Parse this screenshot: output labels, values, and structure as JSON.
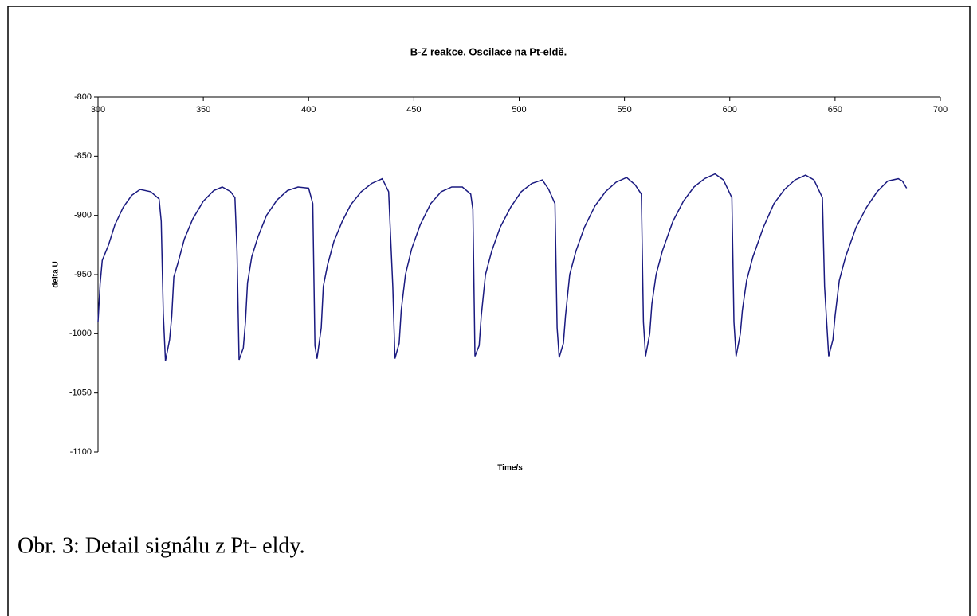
{
  "chart_data": {
    "type": "line",
    "title": "B-Z reakce. Oscilace na Pt-eldě.",
    "x_label": "Time/s",
    "y_label": "delta U",
    "color": "#1a1a80",
    "x": [
      300,
      301,
      302,
      305,
      308,
      312,
      316,
      320,
      325,
      329,
      330,
      331,
      332,
      334,
      335,
      336,
      338,
      341,
      345,
      350,
      355,
      359,
      363,
      365,
      366,
      367,
      369,
      370,
      371,
      373,
      376,
      380,
      385,
      390,
      395,
      400,
      402,
      403,
      404,
      406,
      407,
      409,
      412,
      416,
      420,
      425,
      430,
      435,
      438,
      440,
      441,
      443,
      444,
      446,
      449,
      453,
      458,
      463,
      468,
      473,
      477,
      478,
      479,
      481,
      482,
      484,
      487,
      491,
      496,
      501,
      506,
      511,
      514,
      517,
      518,
      519,
      521,
      522,
      524,
      527,
      531,
      536,
      541,
      546,
      551,
      555,
      558,
      559,
      560,
      562,
      563,
      565,
      568,
      573,
      578,
      583,
      588,
      593,
      597,
      601,
      602,
      603,
      605,
      606,
      608,
      611,
      616,
      621,
      626,
      631,
      636,
      640,
      644,
      645,
      647,
      649,
      650,
      652,
      655,
      660,
      665,
      670,
      675,
      680,
      682,
      684
    ],
    "values": [
      -990,
      -958,
      -938,
      -925,
      -908,
      -893,
      -883,
      -878,
      -880,
      -886,
      -905,
      -983,
      -1023,
      -1005,
      -985,
      -952,
      -940,
      -920,
      -903,
      -888,
      -879,
      -876,
      -880,
      -885,
      -930,
      -1022,
      -1012,
      -990,
      -957,
      -935,
      -918,
      -900,
      -887,
      -879,
      -876,
      -877,
      -890,
      -1010,
      -1021,
      -995,
      -960,
      -942,
      -922,
      -905,
      -891,
      -880,
      -873,
      -869,
      -880,
      -960,
      -1021,
      -1008,
      -980,
      -950,
      -928,
      -908,
      -890,
      -880,
      -876,
      -876,
      -882,
      -895,
      -1019,
      -1010,
      -985,
      -950,
      -930,
      -910,
      -893,
      -880,
      -873,
      -870,
      -878,
      -890,
      -995,
      -1020,
      -1008,
      -985,
      -950,
      -930,
      -910,
      -892,
      -880,
      -872,
      -868,
      -874,
      -882,
      -990,
      -1019,
      -1000,
      -975,
      -950,
      -930,
      -905,
      -888,
      -876,
      -869,
      -865,
      -870,
      -885,
      -990,
      -1019,
      -1000,
      -980,
      -955,
      -935,
      -910,
      -890,
      -878,
      -870,
      -866,
      -870,
      -885,
      -960,
      -1019,
      -1005,
      -985,
      -955,
      -935,
      -910,
      -893,
      -880,
      -871,
      -869,
      -871,
      -877
    ],
    "xlim": [
      300,
      700
    ],
    "xticks": [
      300,
      350,
      400,
      450,
      500,
      550,
      600,
      650,
      700
    ],
    "ylim": [
      -1100,
      -800
    ],
    "yticks": [
      -800,
      -850,
      -900,
      -950,
      -1000,
      -1050,
      -1100
    ]
  },
  "caption": "Obr. 3: Detail signálu z Pt- eldy."
}
